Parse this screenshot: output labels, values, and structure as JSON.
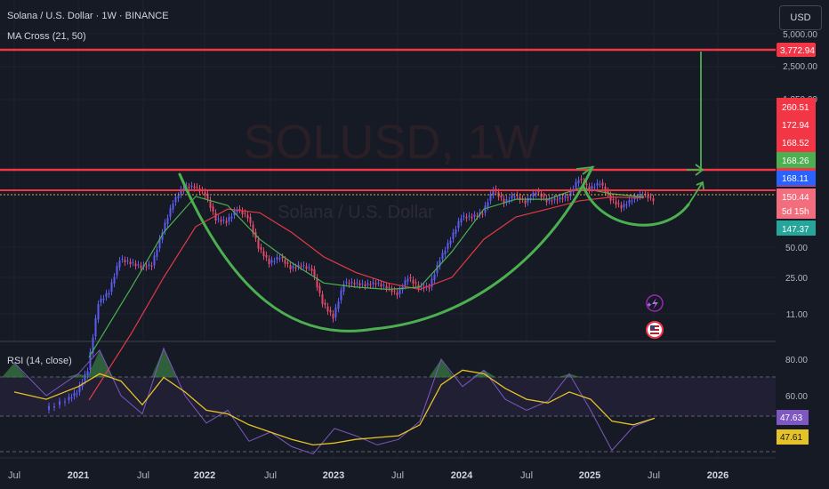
{
  "header": {
    "symbol_line": "Solana / U.S. Dollar · 1W · BINANCE",
    "indicator_line": "MA Cross (21, 50)",
    "currency_button": "USD",
    "rsi_title": "RSI (14, close)"
  },
  "watermark": {
    "ticker": "SOLUSD, 1W",
    "subtitle": "Solana / U.S. Dollar"
  },
  "colors": {
    "background": "#161a25",
    "grid": "#1f2330",
    "candle_up": "#5b5bf0",
    "candle_down": "#e04a6a",
    "ma_fast": "#4caf50",
    "ma_slow": "#e53945",
    "resistance": "#f23645",
    "pattern": "#4caf50",
    "rsi_line": "#7e57c2",
    "rsi_ma": "#e6c229"
  },
  "chart_data": [
    {
      "type": "candlestick",
      "scale": "log",
      "y_axis_ticks": [
        "5,000.00",
        "2,500.00",
        "1,250.00",
        "50.00",
        "25.00",
        "11.00"
      ],
      "x_axis_ticks": [
        "Jul",
        "2021",
        "Jul",
        "2022",
        "Jul",
        "2023",
        "Jul",
        "2024",
        "Jul",
        "2025",
        "Jul",
        "2026"
      ],
      "series": [
        {
          "name": "close",
          "x": [
            "2020-10",
            "2020-12",
            "2021-01",
            "2021-02",
            "2021-03",
            "2021-04",
            "2021-05",
            "2021-06",
            "2021-07",
            "2021-08",
            "2021-09",
            "2021-10",
            "2021-11",
            "2021-12",
            "2022-01",
            "2022-02",
            "2022-03",
            "2022-04",
            "2022-05",
            "2022-06",
            "2022-07",
            "2022-08",
            "2022-09",
            "2022-10",
            "2022-11",
            "2022-12",
            "2023-01",
            "2023-02",
            "2023-03",
            "2023-04",
            "2023-05",
            "2023-06",
            "2023-07",
            "2023-08",
            "2023-09",
            "2023-10",
            "2023-11",
            "2023-12",
            "2024-01",
            "2024-02",
            "2024-03",
            "2024-04",
            "2024-05",
            "2024-06",
            "2024-07",
            "2024-08",
            "2024-09",
            "2024-10",
            "2024-11",
            "2024-12",
            "2025-01",
            "2025-02",
            "2025-03",
            "2025-04",
            "2025-05",
            "2025-06"
          ],
          "y": [
            1.5,
            1.8,
            3,
            14,
            18,
            38,
            35,
            32,
            33,
            72,
            140,
            200,
            200,
            170,
            95,
            90,
            120,
            100,
            50,
            35,
            40,
            31,
            33,
            30,
            14,
            10,
            22,
            22,
            21,
            22,
            20,
            17,
            25,
            20,
            20,
            38,
            60,
            100,
            100,
            110,
            190,
            140,
            165,
            140,
            180,
            145,
            150,
            160,
            240,
            190,
            220,
            150,
            125,
            150,
            170,
            148
          ]
        },
        {
          "name": "MA Cross (21, 50) fast",
          "x": [
            "2021-02",
            "2021-06",
            "2021-09",
            "2021-12",
            "2022-03",
            "2022-06",
            "2022-09",
            "2022-12",
            "2023-03",
            "2023-06",
            "2023-09",
            "2023-12",
            "2024-03",
            "2024-06",
            "2024-09",
            "2024-12",
            "2025-03",
            "2025-06"
          ],
          "y": [
            4,
            20,
            70,
            160,
            130,
            60,
            35,
            22,
            20,
            19,
            20,
            45,
            120,
            150,
            150,
            195,
            170,
            158
          ]
        },
        {
          "name": "MA Cross (21, 50) slow",
          "x": [
            "2021-02",
            "2021-06",
            "2021-09",
            "2021-12",
            "2022-03",
            "2022-06",
            "2022-09",
            "2022-12",
            "2023-03",
            "2023-06",
            "2023-09",
            "2023-12",
            "2024-03",
            "2024-06",
            "2024-09",
            "2024-12",
            "2025-03",
            "2025-06"
          ],
          "y": [
            1.5,
            7,
            25,
            80,
            120,
            110,
            70,
            40,
            28,
            22,
            19,
            25,
            60,
            100,
            120,
            145,
            158,
            155
          ]
        }
      ],
      "price_labels": [
        "3,772.94",
        "260.51",
        "172.94",
        "168.52",
        "168.26",
        "168.11",
        "150.44",
        "5d 15h",
        "147.37"
      ],
      "annotations": [
        "cup and handle pattern",
        "resistance lines",
        "projected breakout arrow"
      ]
    },
    {
      "type": "line",
      "title": "RSI (14, close)",
      "y_axis_ticks": [
        "80.00",
        "60.00"
      ],
      "ylim": [
        20,
        90
      ],
      "price_labels": [
        "47.63",
        "47.61"
      ],
      "series": [
        {
          "name": "RSI",
          "x": [
            "2020-07",
            "2020-10",
            "2021-01",
            "2021-03",
            "2021-05",
            "2021-07",
            "2021-09",
            "2021-11",
            "2022-01",
            "2022-03",
            "2022-05",
            "2022-07",
            "2022-09",
            "2022-11",
            "2023-01",
            "2023-03",
            "2023-05",
            "2023-07",
            "2023-09",
            "2023-11",
            "2024-01",
            "2024-03",
            "2024-05",
            "2024-07",
            "2024-09",
            "2024-11",
            "2025-01",
            "2025-03",
            "2025-05",
            "2025-07"
          ],
          "y": [
            78,
            60,
            72,
            85,
            60,
            50,
            86,
            60,
            45,
            52,
            35,
            40,
            32,
            28,
            42,
            38,
            33,
            36,
            46,
            80,
            65,
            74,
            58,
            52,
            57,
            72,
            52,
            30,
            43,
            47.63
          ]
        },
        {
          "name": "RSI-based MA",
          "x": [
            "2020-07",
            "2020-10",
            "2021-01",
            "2021-03",
            "2021-05",
            "2021-07",
            "2021-09",
            "2021-11",
            "2022-01",
            "2022-03",
            "2022-05",
            "2022-07",
            "2022-09",
            "2022-11",
            "2023-01",
            "2023-03",
            "2023-05",
            "2023-07",
            "2023-09",
            "2023-11",
            "2024-01",
            "2024-03",
            "2024-05",
            "2024-07",
            "2024-09",
            "2024-11",
            "2025-01",
            "2025-03",
            "2025-05",
            "2025-07"
          ],
          "y": [
            62,
            58,
            65,
            72,
            68,
            55,
            70,
            62,
            52,
            50,
            44,
            40,
            36,
            33,
            34,
            36,
            37,
            38,
            44,
            66,
            74,
            72,
            64,
            58,
            56,
            62,
            58,
            46,
            44,
            47.61
          ]
        }
      ]
    }
  ]
}
